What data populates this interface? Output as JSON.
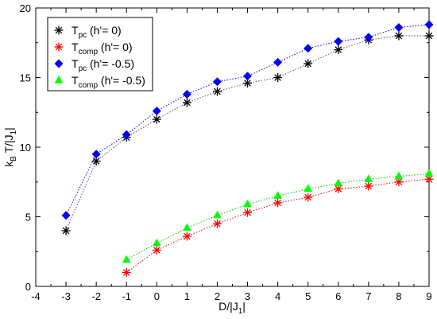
{
  "chart_data": {
    "type": "line",
    "xlabel": {
      "main": "D/|J",
      "sub": "1",
      "tail": "|"
    },
    "ylabel": {
      "pre": "k",
      "sub1": "B",
      "mid": " T/|J",
      "sub2": "1",
      "tail": "|"
    },
    "xlim": [
      -4,
      9
    ],
    "ylim": [
      0,
      20
    ],
    "xticks": [
      -4,
      -3,
      -2,
      -1,
      0,
      1,
      2,
      3,
      4,
      5,
      6,
      7,
      8,
      9
    ],
    "yticks": [
      0,
      5,
      10,
      15,
      20
    ],
    "grid": false,
    "legend_position": "top-left",
    "series": [
      {
        "legend": {
          "base": "T",
          "sub": "pc",
          "rest": " (h'= 0)"
        },
        "color": "#000000",
        "line_color": "#555555",
        "marker": "asterisk",
        "x": [
          -3,
          -2,
          -1,
          0,
          1,
          2,
          3,
          4,
          5,
          6,
          7,
          8,
          9
        ],
        "y": [
          4.0,
          9.0,
          10.7,
          12.0,
          13.2,
          14.0,
          14.6,
          15.0,
          16.0,
          17.0,
          17.7,
          18.0,
          18.0
        ]
      },
      {
        "legend": {
          "base": "T",
          "sub": "comp",
          "rest": " (h'= 0)"
        },
        "color": "#ff0000",
        "line_color": "#ff0000",
        "marker": "asterisk",
        "x": [
          -1,
          0,
          1,
          2,
          3,
          4,
          5,
          6,
          7,
          8,
          9
        ],
        "y": [
          1.0,
          2.6,
          3.6,
          4.5,
          5.3,
          6.0,
          6.4,
          7.0,
          7.2,
          7.5,
          7.7
        ]
      },
      {
        "legend": {
          "base": "T",
          "sub": "pc",
          "rest": " (h'= -0.5)"
        },
        "color": "#0000ff",
        "line_color": "#0000ff",
        "marker": "diamond",
        "x": [
          -3,
          -2,
          -1,
          0,
          1,
          2,
          3,
          4,
          5,
          6,
          7,
          8,
          9
        ],
        "y": [
          5.1,
          9.5,
          10.9,
          12.6,
          13.8,
          14.7,
          15.1,
          16.1,
          17.1,
          17.6,
          17.9,
          18.6,
          18.8
        ]
      },
      {
        "legend": {
          "base": "T",
          "sub": "comp",
          "rest": " (h'= -0.5)"
        },
        "color": "#00ff00",
        "line_color": "#00cc00",
        "marker": "triangle",
        "x": [
          -1,
          0,
          1,
          2,
          3,
          4,
          5,
          6,
          7,
          8,
          9
        ],
        "y": [
          1.9,
          3.1,
          4.2,
          5.1,
          5.9,
          6.5,
          7.0,
          7.4,
          7.7,
          7.9,
          8.1
        ]
      }
    ]
  }
}
